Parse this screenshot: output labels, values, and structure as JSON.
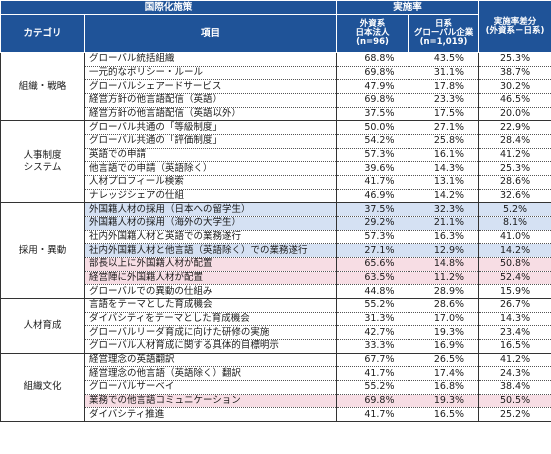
{
  "header": {
    "group_label": "国際化施策",
    "category_label": "カテゴリ",
    "item_label": "項目",
    "rate_label": "実施率",
    "foreign_label": "外資系\n日本法人\n(n=96)",
    "japanese_label": "日系\nグローバル企業\n(n=1,019)",
    "diff_label": "実施率差分\n(外資系－日系)"
  },
  "groups": [
    {
      "category": "組織・戦略",
      "rows": [
        {
          "item": "グローバル統括組織",
          "foreign": "68.8%",
          "japanese": "43.5%",
          "diff": "25.3%",
          "hl": ""
        },
        {
          "item": "一元的なポリシー・ルール",
          "foreign": "69.8%",
          "japanese": "31.1%",
          "diff": "38.7%",
          "hl": ""
        },
        {
          "item": "グローバルシェアードサービス",
          "foreign": "47.9%",
          "japanese": "17.8%",
          "diff": "30.2%",
          "hl": ""
        },
        {
          "item": "経営方針の他言語配信（英語）",
          "foreign": "69.8%",
          "japanese": "23.3%",
          "diff": "46.5%",
          "hl": ""
        },
        {
          "item": "経営方針の他言語配信（英語以外）",
          "foreign": "37.5%",
          "japanese": "17.5%",
          "diff": "20.0%",
          "hl": ""
        }
      ]
    },
    {
      "category": "人事制度\nシステム",
      "rows": [
        {
          "item": "グローバル共通の「等級制度」",
          "foreign": "50.0%",
          "japanese": "27.1%",
          "diff": "22.9%",
          "hl": ""
        },
        {
          "item": "グローバル共通の「評価制度」",
          "foreign": "54.2%",
          "japanese": "25.8%",
          "diff": "28.4%",
          "hl": ""
        },
        {
          "item": "英語での申請",
          "foreign": "57.3%",
          "japanese": "16.1%",
          "diff": "41.2%",
          "hl": ""
        },
        {
          "item": "他言語での申請（英語除く）",
          "foreign": "39.6%",
          "japanese": "14.3%",
          "diff": "25.3%",
          "hl": ""
        },
        {
          "item": "人材プロフィール検索",
          "foreign": "41.7%",
          "japanese": "13.1%",
          "diff": "28.6%",
          "hl": ""
        },
        {
          "item": "ナレッジシェアの仕組",
          "foreign": "46.9%",
          "japanese": "14.2%",
          "diff": "32.6%",
          "hl": ""
        }
      ]
    },
    {
      "category": "採用・異動",
      "rows": [
        {
          "item": "外国籍人材の採用（日本への留学生）",
          "foreign": "37.5%",
          "japanese": "32.3%",
          "diff": "5.2%",
          "hl": "blue"
        },
        {
          "item": "外国籍人材の採用（海外の大学生）",
          "foreign": "29.2%",
          "japanese": "21.1%",
          "diff": "8.1%",
          "hl": "blue"
        },
        {
          "item": "社内外国籍人材と英語での業務遂行",
          "foreign": "57.3%",
          "japanese": "16.3%",
          "diff": "41.0%",
          "hl": ""
        },
        {
          "item": "社内外国籍人材と他言語（英語除く）での業務遂行",
          "foreign": "27.1%",
          "japanese": "12.9%",
          "diff": "14.2%",
          "hl": "blue"
        },
        {
          "item": "部長以上に外国籍人材が配置",
          "foreign": "65.6%",
          "japanese": "14.8%",
          "diff": "50.8%",
          "hl": "pink"
        },
        {
          "item": "経営陣に外国籍人材が配置",
          "foreign": "63.5%",
          "japanese": "11.2%",
          "diff": "52.4%",
          "hl": "pink"
        },
        {
          "item": "グローバルでの異動の仕組み",
          "foreign": "44.8%",
          "japanese": "28.9%",
          "diff": "15.9%",
          "hl": ""
        }
      ]
    },
    {
      "category": "人材育成",
      "rows": [
        {
          "item": "言語をテーマとした育成機会",
          "foreign": "55.2%",
          "japanese": "28.6%",
          "diff": "26.7%",
          "hl": ""
        },
        {
          "item": "ダイバシティをテーマとした育成機会",
          "foreign": "31.3%",
          "japanese": "17.0%",
          "diff": "14.3%",
          "hl": ""
        },
        {
          "item": "グローバルリーダ育成に向けた研修の実施",
          "foreign": "42.7%",
          "japanese": "19.3%",
          "diff": "23.4%",
          "hl": ""
        },
        {
          "item": "グローバル人材育成に関する具体的目標明示",
          "foreign": "33.3%",
          "japanese": "16.9%",
          "diff": "16.5%",
          "hl": ""
        }
      ]
    },
    {
      "category": "組織文化",
      "rows": [
        {
          "item": "経営理念の英語翻訳",
          "foreign": "67.7%",
          "japanese": "26.5%",
          "diff": "41.2%",
          "hl": ""
        },
        {
          "item": "経営理念の他言語（英語除く）翻訳",
          "foreign": "41.7%",
          "japanese": "17.4%",
          "diff": "24.3%",
          "hl": ""
        },
        {
          "item": "グローバルサーベイ",
          "foreign": "55.2%",
          "japanese": "16.8%",
          "diff": "38.4%",
          "hl": ""
        },
        {
          "item": "業務での他言語コミュニケーション",
          "foreign": "69.8%",
          "japanese": "19.3%",
          "diff": "50.5%",
          "hl": "pink"
        },
        {
          "item": "ダイバシティ推進",
          "foreign": "41.7%",
          "japanese": "16.5%",
          "diff": "25.2%",
          "hl": ""
        }
      ]
    }
  ]
}
